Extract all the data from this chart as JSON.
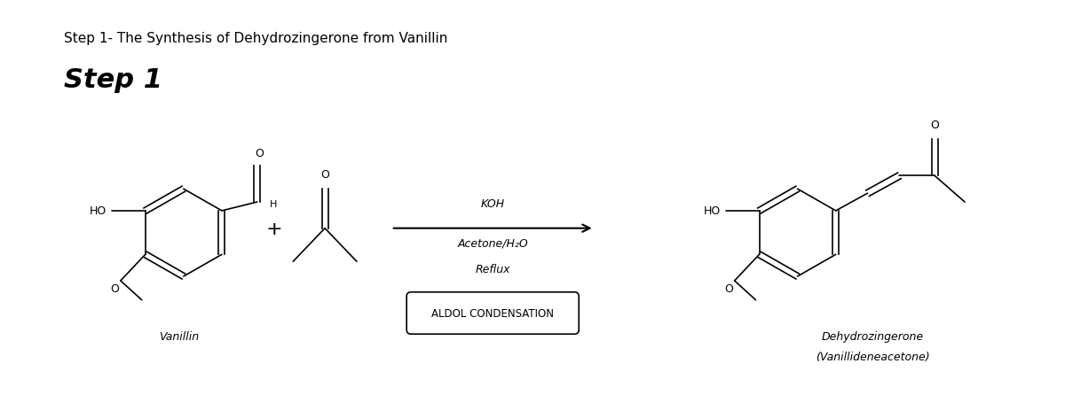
{
  "title": "Step 1- The Synthesis of Dehydrozingerone from Vanillin",
  "step_label": "Step 1",
  "reaction_arrow_label_top": "KOH",
  "reaction_arrow_label_mid1": "Acetone/H₂O",
  "reaction_arrow_label_mid2": "Reflux",
  "box_label": "ALDOL CONDENSATION",
  "vanillin_label": "Vanillin",
  "product_label_line1": "Dehydrozingerone",
  "product_label_line2": "(Vanillideneacetone)",
  "plus_symbol": "+",
  "ho_label_left": "HO",
  "ho_label_right": "HO",
  "line_color": "#000000",
  "text_color": "#000000",
  "fig_width": 12.0,
  "fig_height": 4.64,
  "dpi": 100
}
